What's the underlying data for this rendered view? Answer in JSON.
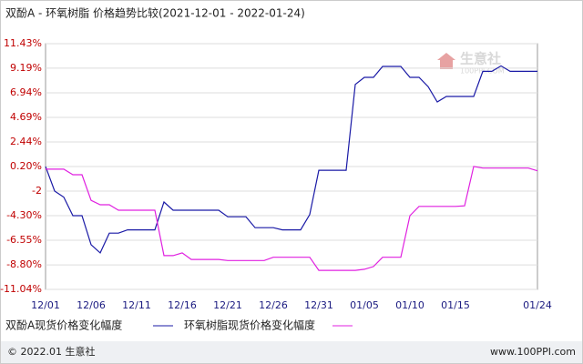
{
  "chart_data": {
    "type": "line",
    "title": "双酚A - 环氧树脂 价格趋势比较(2021-12-01 - 2022-01-24)",
    "categories": [
      "12/01",
      null,
      null,
      null,
      null,
      "12/06",
      null,
      null,
      null,
      null,
      "12/11",
      null,
      null,
      null,
      null,
      "12/16",
      null,
      null,
      null,
      null,
      "12/21",
      null,
      null,
      null,
      null,
      "12/26",
      null,
      null,
      null,
      null,
      "12/31",
      null,
      null,
      null,
      null,
      "01/05",
      null,
      null,
      null,
      null,
      "01/10",
      null,
      null,
      null,
      null,
      "01/15",
      null,
      null,
      null,
      null,
      null,
      null,
      null,
      null,
      "01/24"
    ],
    "series": [
      {
        "name": "双酚A现货价格变化幅度",
        "color": "#1a1aa6",
        "values": [
          0.2,
          -2.05,
          -2.6,
          -4.3,
          -4.3,
          -6.95,
          -7.7,
          -5.9,
          -5.9,
          -5.6,
          -5.6,
          -5.6,
          -5.6,
          -3.05,
          -3.8,
          -3.8,
          -3.8,
          -3.8,
          -3.8,
          -3.8,
          -4.4,
          -4.4,
          -4.4,
          -5.4,
          -5.4,
          -5.4,
          -5.6,
          -5.6,
          -5.6,
          -4.2,
          -0.15,
          -0.15,
          -0.15,
          -0.15,
          7.7,
          8.35,
          8.35,
          9.35,
          9.35,
          9.35,
          8.35,
          8.35,
          7.5,
          6.1,
          6.6,
          6.6,
          6.6,
          6.6,
          8.9,
          8.9,
          9.4,
          8.9,
          8.9,
          8.9,
          8.9
        ]
      },
      {
        "name": "环氧树脂现货价格变化幅度",
        "color": "#e020e0",
        "values": [
          -0.05,
          -0.05,
          -0.05,
          -0.55,
          -0.55,
          -2.9,
          -3.3,
          -3.3,
          -3.8,
          -3.8,
          -3.8,
          -3.8,
          -3.8,
          -7.95,
          -7.95,
          -7.7,
          -8.3,
          -8.3,
          -8.3,
          -8.3,
          -8.4,
          -8.4,
          -8.4,
          -8.4,
          -8.4,
          -8.1,
          -8.1,
          -8.1,
          -8.1,
          -8.1,
          -9.3,
          -9.3,
          -9.3,
          -9.3,
          -9.3,
          -9.2,
          -8.95,
          -8.1,
          -8.1,
          -8.1,
          -4.3,
          -3.45,
          -3.45,
          -3.45,
          -3.45,
          -3.45,
          -3.4,
          0.2,
          0.05,
          0.05,
          0.05,
          0.05,
          0.05,
          0.05,
          -0.2
        ]
      }
    ],
    "ylim": [
      -11.04,
      11.43
    ],
    "yticks": [
      {
        "value": 11.43,
        "label": "11.43%"
      },
      {
        "value": 9.19,
        "label": "9.19%"
      },
      {
        "value": 6.94,
        "label": "6.94%"
      },
      {
        "value": 4.69,
        "label": "4.69%"
      },
      {
        "value": 2.44,
        "label": "2.44%"
      },
      {
        "value": 0.2,
        "label": "0.20%"
      },
      {
        "value": -2.05,
        "label": "-2"
      },
      {
        "value": -4.3,
        "label": "-4.30%"
      },
      {
        "value": -6.55,
        "label": "-6.55%"
      },
      {
        "value": -8.8,
        "label": "-8.80%"
      },
      {
        "value": -11.04,
        "label": "-11.04%"
      }
    ],
    "grid": true
  },
  "watermark": {
    "name": "生意社",
    "site": "100PPI.COM"
  },
  "footer": {
    "copyright": "© 2022.01 生意社",
    "url": "www.100PPI.com"
  }
}
